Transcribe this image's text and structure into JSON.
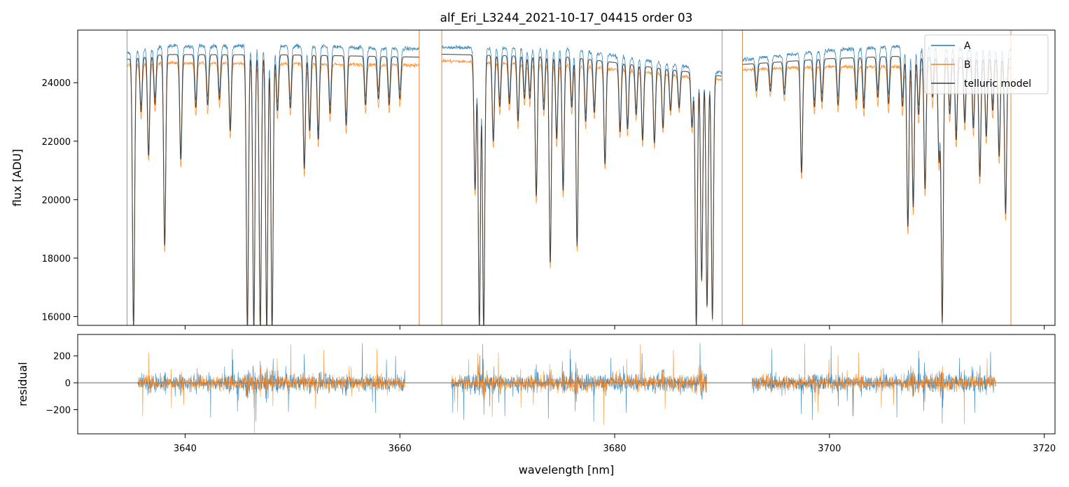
{
  "chart_data": [
    {
      "type": "line",
      "title": "alf_Eri_L3244_2021-10-17_04415  order 03",
      "ylabel": "flux [ADU]",
      "xlim": [
        3630,
        3721
      ],
      "ylim": [
        15700,
        25800
      ],
      "yticks": [
        16000,
        18000,
        20000,
        22000,
        24000
      ],
      "legend": {
        "placement": "top-right"
      },
      "segments": [
        [
          3634.6,
          3661.8
        ],
        [
          3663.9,
          3690.0
        ],
        [
          3691.9,
          3716.9
        ]
      ],
      "series": [
        {
          "name": "A",
          "color": "#1f77b4",
          "continuum": [
            [
              3634.6,
              25000
            ],
            [
              3638,
              25250
            ],
            [
              3650,
              25250
            ],
            [
              3661.8,
              25150
            ],
            [
              3663.9,
              25200
            ],
            [
              3676,
              25150
            ],
            [
              3690.0,
              24350
            ],
            [
              3691.9,
              24800
            ],
            [
              3700,
              25100
            ],
            [
              3706,
              25250
            ],
            [
              3716.9,
              25100
            ]
          ]
        },
        {
          "name": "B",
          "color": "#ff7f0e",
          "continuum": [
            [
              3634.6,
              24600
            ],
            [
              3638,
              24680
            ],
            [
              3650,
              24650
            ],
            [
              3661.8,
              24600
            ],
            [
              3663.9,
              24750
            ],
            [
              3676,
              24600
            ],
            [
              3690.0,
              24100
            ],
            [
              3691.9,
              24450
            ],
            [
              3700,
              24550
            ],
            [
              3716.9,
              24550
            ]
          ]
        },
        {
          "name": "telluric model",
          "color": "#3a3a3a"
        }
      ],
      "absorption_lines": [
        [
          3635.2,
          15700
        ],
        [
          3635.9,
          23200
        ],
        [
          3636.6,
          21700
        ],
        [
          3637.2,
          23500
        ],
        [
          3638.1,
          18600
        ],
        [
          3639.6,
          21600
        ],
        [
          3641.0,
          23400
        ],
        [
          3642.1,
          23500
        ],
        [
          3643.2,
          23700
        ],
        [
          3644.2,
          22600
        ],
        [
          3645.8,
          15700
        ],
        [
          3646.4,
          15700
        ],
        [
          3647.0,
          15700
        ],
        [
          3647.6,
          15700
        ],
        [
          3648.1,
          15700
        ],
        [
          3648.6,
          23300
        ],
        [
          3649.8,
          23400
        ],
        [
          3651.1,
          21300
        ],
        [
          3651.6,
          22600
        ],
        [
          3652.4,
          22300
        ],
        [
          3653.5,
          23200
        ],
        [
          3655.0,
          22800
        ],
        [
          3656.8,
          23500
        ],
        [
          3658.0,
          23700
        ],
        [
          3659.0,
          23500
        ],
        [
          3660.0,
          23700
        ],
        [
          3667.0,
          20500
        ],
        [
          3667.4,
          15700
        ],
        [
          3667.8,
          15700
        ],
        [
          3668.7,
          22200
        ],
        [
          3669.3,
          23400
        ],
        [
          3670.2,
          23500
        ],
        [
          3671.0,
          22900
        ],
        [
          3671.6,
          23700
        ],
        [
          3672.1,
          23700
        ],
        [
          3672.7,
          20300
        ],
        [
          3673.4,
          23300
        ],
        [
          3674.0,
          18000
        ],
        [
          3674.6,
          22300
        ],
        [
          3675.2,
          20500
        ],
        [
          3676.0,
          23400
        ],
        [
          3676.5,
          18600
        ],
        [
          3677.3,
          22900
        ],
        [
          3678.1,
          23200
        ],
        [
          3679.1,
          21400
        ],
        [
          3680.5,
          22500
        ],
        [
          3681.2,
          22600
        ],
        [
          3682.0,
          23100
        ],
        [
          3682.6,
          22200
        ],
        [
          3683.7,
          22100
        ],
        [
          3684.5,
          22600
        ],
        [
          3685.2,
          23200
        ],
        [
          3686.0,
          23300
        ],
        [
          3687.2,
          22600
        ],
        [
          3687.6,
          15700
        ],
        [
          3688.1,
          17300
        ],
        [
          3688.6,
          16400
        ],
        [
          3689.1,
          16000
        ],
        [
          3693.2,
          23900
        ],
        [
          3694.5,
          23900
        ],
        [
          3695.8,
          23800
        ],
        [
          3697.4,
          21100
        ],
        [
          3698.6,
          23400
        ],
        [
          3699.3,
          23600
        ],
        [
          3700.8,
          23500
        ],
        [
          3702.5,
          23700
        ],
        [
          3703.2,
          23400
        ],
        [
          3704.5,
          23800
        ],
        [
          3705.5,
          23600
        ],
        [
          3706.8,
          23500
        ],
        [
          3707.3,
          19300
        ],
        [
          3707.8,
          20000
        ],
        [
          3708.3,
          23200
        ],
        [
          3708.9,
          20600
        ],
        [
          3709.6,
          23800
        ],
        [
          3710.2,
          21600
        ],
        [
          3710.5,
          16000
        ],
        [
          3711.2,
          23200
        ],
        [
          3711.8,
          22300
        ],
        [
          3712.6,
          22900
        ],
        [
          3713.4,
          22700
        ],
        [
          3714.0,
          21000
        ],
        [
          3714.6,
          22400
        ],
        [
          3715.2,
          23300
        ],
        [
          3715.8,
          21700
        ],
        [
          3716.4,
          19700
        ]
      ]
    },
    {
      "type": "line",
      "xlabel": "wavelength [nm]",
      "ylabel": "residual",
      "xlim": [
        3630,
        3721
      ],
      "ylim": [
        -380,
        360
      ],
      "xticks": [
        3640,
        3660,
        3680,
        3700,
        3720
      ],
      "yticks": [
        -200,
        0,
        200
      ],
      "zero_line": true,
      "segments": [
        [
          3635.6,
          3660.5
        ],
        [
          3664.8,
          3688.6
        ],
        [
          3692.8,
          3715.5
        ]
      ],
      "series": [
        {
          "name": "A",
          "color": "#1f77b4",
          "noise_amplitude": 110
        },
        {
          "name": "B",
          "color": "#ff7f0e",
          "noise_amplitude": 95
        }
      ]
    }
  ]
}
